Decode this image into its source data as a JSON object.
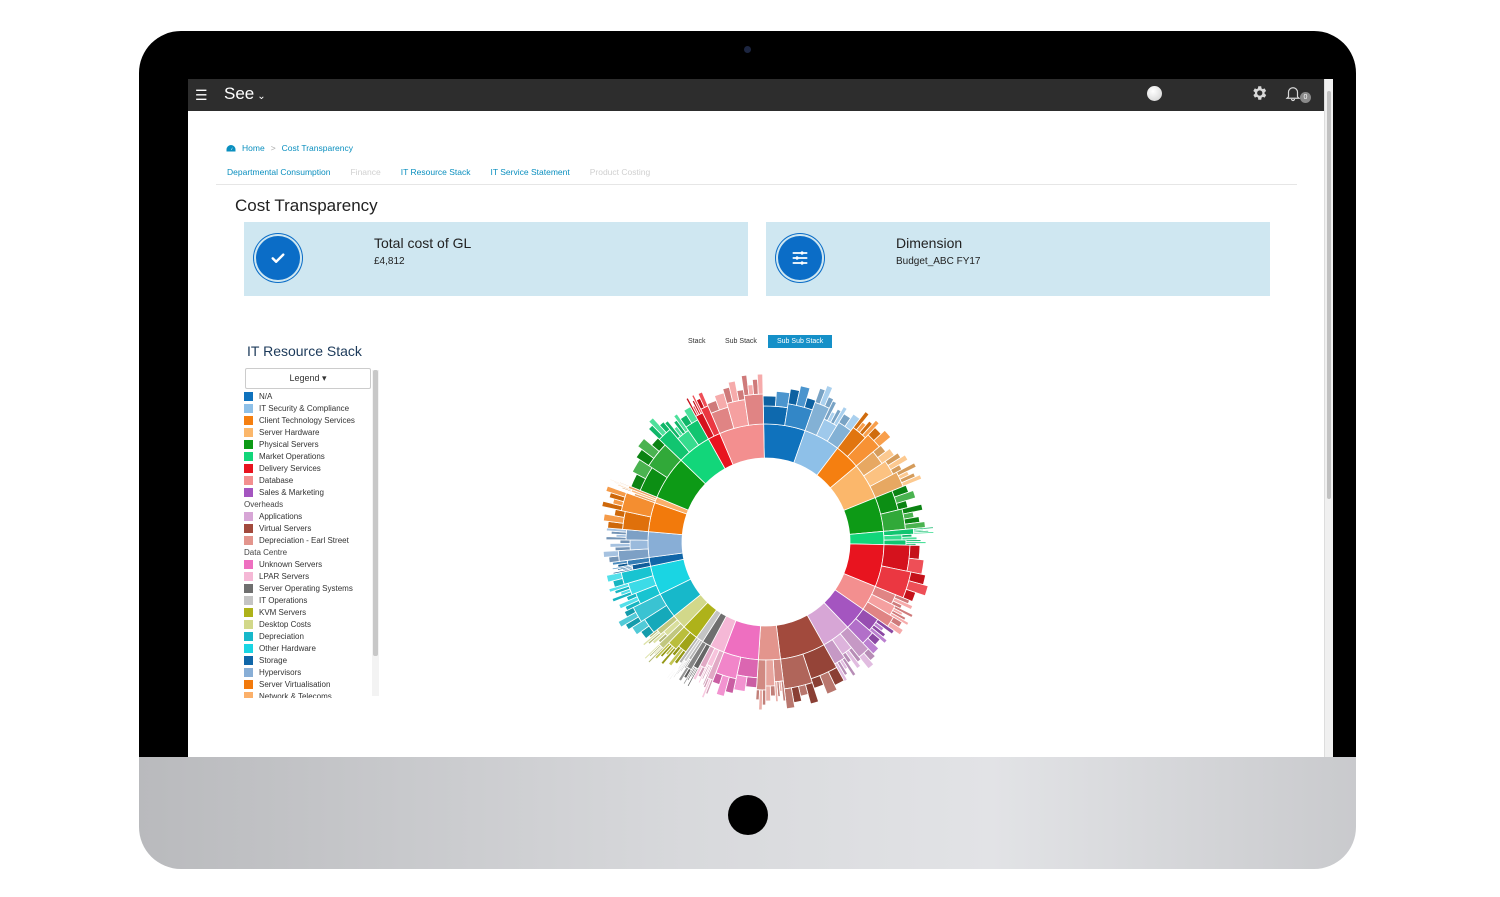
{
  "app": {
    "brand": "See",
    "notification_count": "0"
  },
  "breadcrumb": {
    "home": "Home",
    "current": "Cost Transparency"
  },
  "subnav": [
    {
      "label": "Departmental Consumption",
      "enabled": true
    },
    {
      "label": "Finance",
      "enabled": false
    },
    {
      "label": "IT Resource Stack",
      "enabled": true
    },
    {
      "label": "IT Service Statement",
      "enabled": true
    },
    {
      "label": "Product Costing",
      "enabled": false
    }
  ],
  "page": {
    "title": "Cost Transparency"
  },
  "kpis": [
    {
      "title": "Total cost of GL",
      "value": "£4,812",
      "icon": "check-icon"
    },
    {
      "title": "Dimension",
      "value": "Budget_ABC FY17",
      "icon": "sliders-icon"
    }
  ],
  "section": {
    "title": "IT Resource Stack",
    "legend_button": "Legend"
  },
  "view_toggle": {
    "options": [
      "Stack",
      "Sub Stack",
      "Sub Sub Stack"
    ],
    "active": "Sub Sub Stack"
  },
  "legend": [
    {
      "label": "N/A",
      "color": "#0f72bd"
    },
    {
      "label": "IT Security & Compliance",
      "color": "#8ec0e8"
    },
    {
      "label": "Client Technology Services",
      "color": "#f57f10"
    },
    {
      "label": "Server Hardware",
      "color": "#fbb76b"
    },
    {
      "label": "Physical Servers",
      "color": "#0d9a16"
    },
    {
      "label": "Market Operations",
      "color": "#12d67a"
    },
    {
      "label": "Delivery Services",
      "color": "#e8141f"
    },
    {
      "label": "Database",
      "color": "#f38f8f"
    },
    {
      "label": "Sales & Marketing",
      "color": "#a455c0"
    },
    {
      "label": "Overheads",
      "header": true
    },
    {
      "label": "Applications",
      "color": "#d7a6d6"
    },
    {
      "label": "Virtual Servers",
      "color": "#a24a3d"
    },
    {
      "label": "Depreciation - Earl Street",
      "color": "#e3958d"
    },
    {
      "label": "Data Centre",
      "header": true
    },
    {
      "label": "Unknown Servers",
      "color": "#ee6fc0"
    },
    {
      "label": "LPAR Servers",
      "color": "#f5b8d6"
    },
    {
      "label": "Server Operating Systems",
      "color": "#6f6f6f"
    },
    {
      "label": "IT Operations",
      "color": "#c4c4c4"
    },
    {
      "label": "KVM Servers",
      "color": "#aeb21a"
    },
    {
      "label": "Desktop Costs",
      "color": "#d2d88a"
    },
    {
      "label": "Depreciation",
      "color": "#17b8ca"
    },
    {
      "label": "Other Hardware",
      "color": "#1ad5e3"
    },
    {
      "label": "Storage",
      "color": "#1066a8"
    },
    {
      "label": "Hypervisors",
      "color": "#88aed6"
    },
    {
      "label": "Server Virtualisation",
      "color": "#f27a0c"
    },
    {
      "label": "Network & Telecoms",
      "color": "#fbb06a"
    }
  ],
  "chart_data": {
    "type": "sunburst",
    "levels": [
      "Stack",
      "Sub Stack",
      "Sub Sub Stack"
    ],
    "segments": [
      {
        "name": "N/A",
        "color": "#0f72bd",
        "share": 0.057
      },
      {
        "name": "IT Security & Compliance",
        "color": "#8ec0e8",
        "share": 0.05
      },
      {
        "name": "Client Technology Services",
        "color": "#f57f10",
        "share": 0.035
      },
      {
        "name": "Server Hardware",
        "color": "#fbb76b",
        "share": 0.05
      },
      {
        "name": "Physical Servers",
        "color": "#0d9a16",
        "share": 0.047
      },
      {
        "name": "Market Operations",
        "color": "#12d67a",
        "share": 0.018
      },
      {
        "name": "Delivery Services",
        "color": "#e8141f",
        "share": 0.058
      },
      {
        "name": "Database",
        "color": "#f38f8f",
        "share": 0.035
      },
      {
        "name": "Sales & Marketing",
        "color": "#a455c0",
        "share": 0.032
      },
      {
        "name": "Applications",
        "color": "#d7a6d6",
        "share": 0.04
      },
      {
        "name": "Virtual Servers",
        "color": "#a24a3d",
        "share": 0.062
      },
      {
        "name": "Depreciation - Earl Street",
        "color": "#e3958d",
        "share": 0.03
      },
      {
        "name": "Unknown Servers",
        "color": "#ee6fc0",
        "share": 0.048
      },
      {
        "name": "LPAR Servers",
        "color": "#f5b8d6",
        "share": 0.02
      },
      {
        "name": "Server Operating Systems",
        "color": "#6f6f6f",
        "share": 0.012
      },
      {
        "name": "IT Operations",
        "color": "#c4c4c4",
        "share": 0.01
      },
      {
        "name": "KVM Servers",
        "color": "#aeb21a",
        "share": 0.022
      },
      {
        "name": "Desktop Costs",
        "color": "#d2d88a",
        "share": 0.02
      },
      {
        "name": "Depreciation",
        "color": "#17b8ca",
        "share": 0.035
      },
      {
        "name": "Other Hardware",
        "color": "#1ad5e3",
        "share": 0.04
      },
      {
        "name": "Storage",
        "color": "#1066a8",
        "share": 0.012
      },
      {
        "name": "Hypervisors",
        "color": "#88aed6",
        "share": 0.035
      },
      {
        "name": "Server Virtualisation",
        "color": "#f27a0c",
        "share": 0.04
      },
      {
        "name": "Network & Telecoms",
        "color": "#fbb06a",
        "share": 0.008
      },
      {
        "name": "Physical Servers",
        "color": "#0d9a16",
        "share": 0.06
      },
      {
        "name": "Market Operations",
        "color": "#12d67a",
        "share": 0.047
      },
      {
        "name": "Delivery Services",
        "color": "#e8141f",
        "share": 0.017
      },
      {
        "name": "Database",
        "color": "#f38f8f",
        "share": 0.061
      }
    ]
  }
}
